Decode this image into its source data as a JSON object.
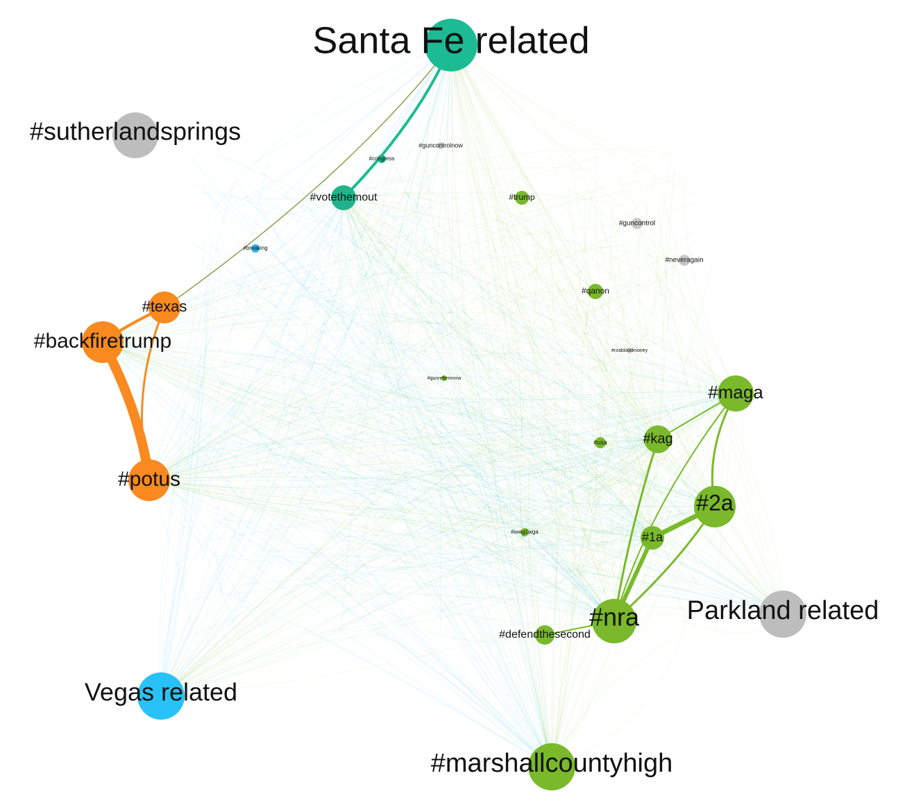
{
  "nodes": [
    {
      "label": "Santa Fe related",
      "color": "#1dbb94"
    },
    {
      "label": "#sutherlandsprings",
      "color": "#bdbdbd"
    },
    {
      "label": "#votethemout",
      "color": "#22b38a"
    },
    {
      "label": "#trump",
      "color": "#7ab92b"
    },
    {
      "label": "#congress",
      "color": "#22b38a"
    },
    {
      "label": "#guncontrolnow",
      "color": "#c8c8c8"
    },
    {
      "label": "#guncontrol",
      "color": "#c8c8c8"
    },
    {
      "label": "#neveragain",
      "color": "#c8c8c8"
    },
    {
      "label": "#breaking",
      "color": "#29b6f6"
    },
    {
      "label": "#qanon",
      "color": "#7ab92b"
    },
    {
      "label": "#texas",
      "color": "#f88a1f"
    },
    {
      "label": "#backfiretrump",
      "color": "#f88a1f"
    },
    {
      "label": "#maga",
      "color": "#7ab92b"
    },
    {
      "label": "#kag",
      "color": "#7ab92b"
    },
    {
      "label": "#usa",
      "color": "#7ab92b"
    },
    {
      "label": "#potus",
      "color": "#f88a1f"
    },
    {
      "label": "#2a",
      "color": "#7ab92b"
    },
    {
      "label": "#1a",
      "color": "#7ab92b"
    },
    {
      "label": "#wwg1wga",
      "color": "#7ab92b"
    },
    {
      "label": "#nra",
      "color": "#7ab92b"
    },
    {
      "label": "#defendthesecond",
      "color": "#7ab92b"
    },
    {
      "label": "Parkland related",
      "color": "#bdbdbd"
    },
    {
      "label": "Vegas related",
      "color": "#29c2f8"
    },
    {
      "label": "#marshallcountyhigh",
      "color": "#7ab92b"
    },
    {
      "label": "#gunreformnow",
      "color": "#7ab92b"
    },
    {
      "label": "#nrabloodmoney",
      "color": "#c8c8c8"
    }
  ]
}
